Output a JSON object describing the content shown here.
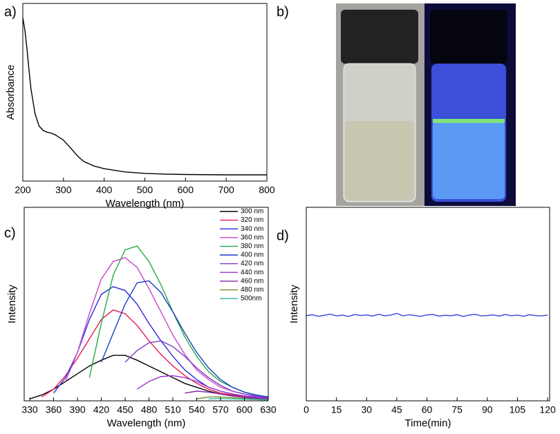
{
  "chart_data": [
    {
      "type": "line",
      "panel_label": "a)",
      "xlabel": "Wavelength (nm)",
      "ylabel": "Absorbance",
      "x": [
        200,
        205,
        210,
        215,
        220,
        230,
        240,
        250,
        260,
        270,
        280,
        290,
        300,
        310,
        320,
        335,
        350,
        375,
        400,
        450,
        500,
        550,
        600,
        700,
        800
      ],
      "series": [
        {
          "color": "#000000",
          "values": [
            0.92,
            0.85,
            0.75,
            0.63,
            0.52,
            0.38,
            0.31,
            0.285,
            0.275,
            0.27,
            0.26,
            0.245,
            0.23,
            0.205,
            0.18,
            0.14,
            0.11,
            0.085,
            0.07,
            0.052,
            0.043,
            0.039,
            0.037,
            0.035,
            0.035
          ]
        }
      ],
      "xlim": [
        200,
        800
      ],
      "xticks": [
        200,
        300,
        400,
        500,
        600,
        700,
        800
      ],
      "ylim": [
        0,
        1
      ]
    },
    {
      "type": "line",
      "panel_label": "c)",
      "xlabel": "Wavelength (nm)",
      "ylabel": "Intensity",
      "x": [
        330,
        345,
        360,
        375,
        390,
        405,
        420,
        435,
        450,
        465,
        480,
        495,
        510,
        525,
        540,
        555,
        570,
        585,
        600,
        615,
        630
      ],
      "series": [
        {
          "name": "300 nm",
          "color": "#000000",
          "values": [
            0.01,
            0.03,
            0.06,
            0.1,
            0.14,
            0.18,
            0.21,
            0.235,
            0.235,
            0.21,
            0.18,
            0.15,
            0.12,
            0.09,
            0.07,
            0.05,
            0.035,
            0.025,
            0.018,
            0.012,
            0.008
          ]
        },
        {
          "name": "320 nm",
          "color": "#e8194a",
          "values": [
            null,
            0.02,
            0.06,
            0.13,
            0.22,
            0.32,
            0.42,
            0.47,
            0.45,
            0.39,
            0.31,
            0.24,
            0.18,
            0.13,
            0.09,
            0.06,
            0.04,
            0.03,
            0.02,
            0.012,
            0.008
          ]
        },
        {
          "name": "340 nm",
          "color": "#2a2adf",
          "values": [
            null,
            null,
            0.04,
            0.12,
            0.25,
            0.42,
            0.55,
            0.59,
            0.57,
            0.5,
            0.4,
            0.31,
            0.23,
            0.16,
            0.11,
            0.07,
            0.05,
            0.035,
            0.025,
            0.015,
            0.01
          ]
        },
        {
          "name": "360 nm",
          "color": "#cc44cc",
          "values": [
            null,
            null,
            null,
            0.1,
            0.25,
            0.45,
            0.63,
            0.72,
            0.74,
            0.69,
            0.58,
            0.46,
            0.34,
            0.24,
            0.16,
            0.11,
            0.07,
            0.05,
            0.035,
            0.02,
            0.012
          ]
        },
        {
          "name": "380 nm",
          "color": "#22aa44",
          "values": [
            null,
            null,
            null,
            null,
            null,
            0.12,
            0.4,
            0.65,
            0.78,
            0.8,
            0.72,
            0.6,
            0.46,
            0.33,
            0.23,
            0.15,
            0.1,
            0.07,
            0.045,
            0.03,
            0.02
          ]
        },
        {
          "name": "400 nm",
          "color": "#1a3cc0",
          "values": [
            null,
            null,
            null,
            null,
            null,
            null,
            0.2,
            0.35,
            0.5,
            0.61,
            0.62,
            0.56,
            0.46,
            0.35,
            0.25,
            0.17,
            0.11,
            0.07,
            0.045,
            0.03,
            0.02
          ]
        },
        {
          "name": "420 nm",
          "color": "#7a3ac4",
          "values": [
            null,
            null,
            null,
            null,
            null,
            null,
            null,
            null,
            0.2,
            0.26,
            0.3,
            0.31,
            0.28,
            0.23,
            0.17,
            0.12,
            0.08,
            0.05,
            0.035,
            0.025,
            0.015
          ]
        },
        {
          "name": "440 nm",
          "color": "#9933cc",
          "values": [
            null,
            null,
            null,
            null,
            null,
            null,
            null,
            null,
            null,
            0.06,
            0.1,
            0.125,
            0.13,
            0.12,
            0.1,
            0.07,
            0.05,
            0.035,
            0.025,
            0.018,
            0.012
          ]
        },
        {
          "name": "460 nm",
          "color": "#8822aa",
          "values": [
            null,
            null,
            null,
            null,
            null,
            null,
            null,
            null,
            null,
            null,
            null,
            null,
            null,
            0.04,
            0.05,
            0.045,
            0.035,
            0.025,
            0.018,
            0.012,
            0.008
          ]
        },
        {
          "name": "480 nm",
          "color": "#6b8e23",
          "values": [
            null,
            null,
            null,
            null,
            null,
            null,
            null,
            null,
            null,
            null,
            null,
            null,
            null,
            null,
            0.01,
            0.02,
            0.02,
            0.016,
            0.012,
            0.008,
            0.005
          ]
        },
        {
          "name": "500nm",
          "color": "#33bbaa",
          "values": [
            null,
            null,
            null,
            null,
            null,
            null,
            null,
            null,
            null,
            null,
            null,
            null,
            null,
            null,
            null,
            0.01,
            0.012,
            0.01,
            0.008,
            0.006,
            0.004
          ]
        }
      ],
      "xlim": [
        323,
        630
      ],
      "xticks": [
        330,
        360,
        390,
        420,
        450,
        480,
        510,
        540,
        570,
        600,
        630
      ],
      "ylim": [
        0,
        1
      ]
    },
    {
      "type": "line",
      "panel_label": "d)",
      "xlabel": "Time(min)",
      "ylabel": "Intensity",
      "x": [
        0,
        3,
        6,
        9,
        12,
        15,
        18,
        21,
        24,
        27,
        30,
        33,
        36,
        39,
        42,
        45,
        48,
        51,
        54,
        57,
        60,
        63,
        66,
        69,
        72,
        75,
        78,
        81,
        84,
        87,
        90,
        93,
        96,
        99,
        102,
        105,
        108,
        111,
        114,
        117,
        120
      ],
      "series": [
        {
          "color": "#3344dd",
          "values": [
            0.44,
            0.445,
            0.437,
            0.442,
            0.448,
            0.439,
            0.443,
            0.436,
            0.446,
            0.441,
            0.444,
            0.438,
            0.447,
            0.44,
            0.443,
            0.452,
            0.439,
            0.445,
            0.441,
            0.437,
            0.444,
            0.446,
            0.438,
            0.442,
            0.44,
            0.445,
            0.436,
            0.443,
            0.447,
            0.439,
            0.441,
            0.444,
            0.438,
            0.446,
            0.44,
            0.443,
            0.437,
            0.445,
            0.441,
            0.439,
            0.443
          ]
        }
      ],
      "xlim": [
        0,
        121
      ],
      "xticks": [
        0,
        15,
        30,
        45,
        60,
        75,
        90,
        105,
        120
      ],
      "ylim": [
        0,
        1
      ]
    }
  ],
  "image_panel": {
    "panel_label": "b)"
  }
}
